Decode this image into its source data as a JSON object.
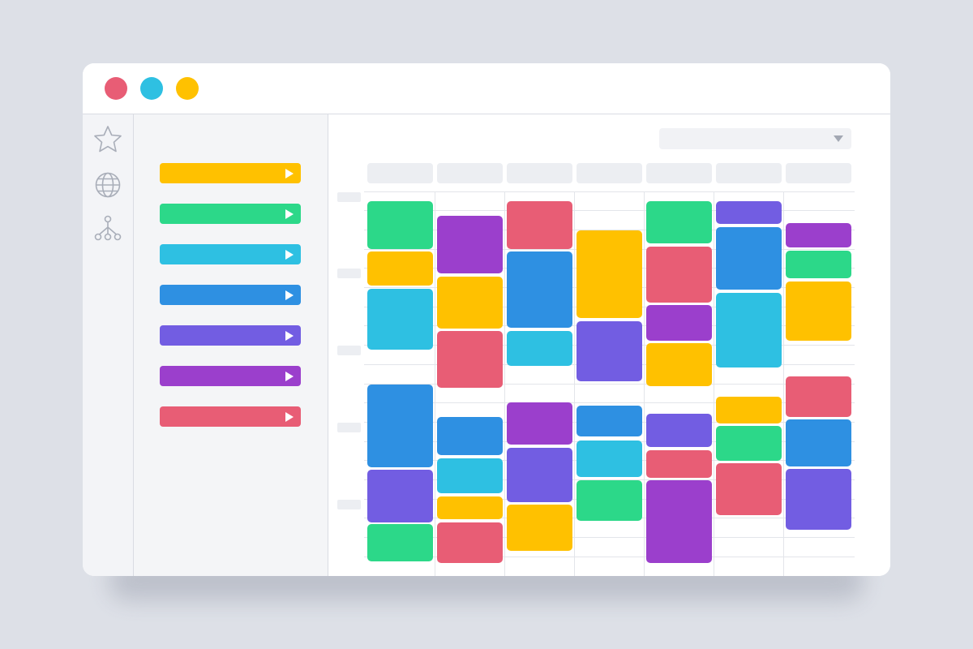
{
  "window": {
    "buttons": [
      {
        "name": "close",
        "color": "#e85d75"
      },
      {
        "name": "minimize",
        "color": "#2ec0e2"
      },
      {
        "name": "maximize",
        "color": "#ffc100"
      }
    ]
  },
  "rail": {
    "icons": [
      "star-icon",
      "globe-icon",
      "network-icon"
    ]
  },
  "categories": [
    {
      "color": "#ffc100",
      "label": ""
    },
    {
      "color": "#2cd889",
      "label": ""
    },
    {
      "color": "#2ec0e2",
      "label": ""
    },
    {
      "color": "#2e90e2",
      "label": ""
    },
    {
      "color": "#725de2",
      "label": ""
    },
    {
      "color": "#9b3fcc",
      "label": ""
    },
    {
      "color": "#e85d75",
      "label": ""
    }
  ],
  "calendar": {
    "view_select": {
      "value": ""
    },
    "day_headers": [
      "",
      "",
      "",
      "",
      "",
      "",
      ""
    ],
    "time_labels": [
      "",
      "",
      "",
      "",
      ""
    ],
    "colors": {
      "yellow": "#ffc100",
      "green": "#2cd889",
      "cyan": "#2ec0e2",
      "blue": "#2e90e2",
      "indigo": "#725de2",
      "purple": "#9b3fcc",
      "red": "#e85d75"
    },
    "columns": [
      [
        {
          "color": "green"
        },
        {
          "color": "yellow"
        },
        {
          "color": "cyan"
        },
        {
          "color": "blue"
        },
        {
          "color": "indigo"
        },
        {
          "color": "green"
        }
      ],
      [
        {
          "color": "purple"
        },
        {
          "color": "yellow"
        },
        {
          "color": "red"
        },
        {
          "color": "blue"
        },
        {
          "color": "cyan"
        },
        {
          "color": "yellow"
        },
        {
          "color": "red"
        }
      ],
      [
        {
          "color": "red"
        },
        {
          "color": "blue"
        },
        {
          "color": "cyan"
        },
        {
          "color": "purple"
        },
        {
          "color": "indigo"
        },
        {
          "color": "yellow"
        }
      ],
      [
        {
          "color": "yellow"
        },
        {
          "color": "indigo"
        },
        {
          "color": "blue"
        },
        {
          "color": "cyan"
        },
        {
          "color": "green"
        }
      ],
      [
        {
          "color": "green"
        },
        {
          "color": "red"
        },
        {
          "color": "purple"
        },
        {
          "color": "yellow"
        },
        {
          "color": "indigo"
        },
        {
          "color": "red"
        },
        {
          "color": "purple"
        }
      ],
      [
        {
          "color": "indigo"
        },
        {
          "color": "blue"
        },
        {
          "color": "cyan"
        },
        {
          "color": "yellow"
        },
        {
          "color": "green"
        },
        {
          "color": "red"
        }
      ],
      [
        {
          "color": "purple"
        },
        {
          "color": "green"
        },
        {
          "color": "yellow"
        },
        {
          "color": "red"
        },
        {
          "color": "blue"
        },
        {
          "color": "indigo"
        }
      ]
    ]
  }
}
